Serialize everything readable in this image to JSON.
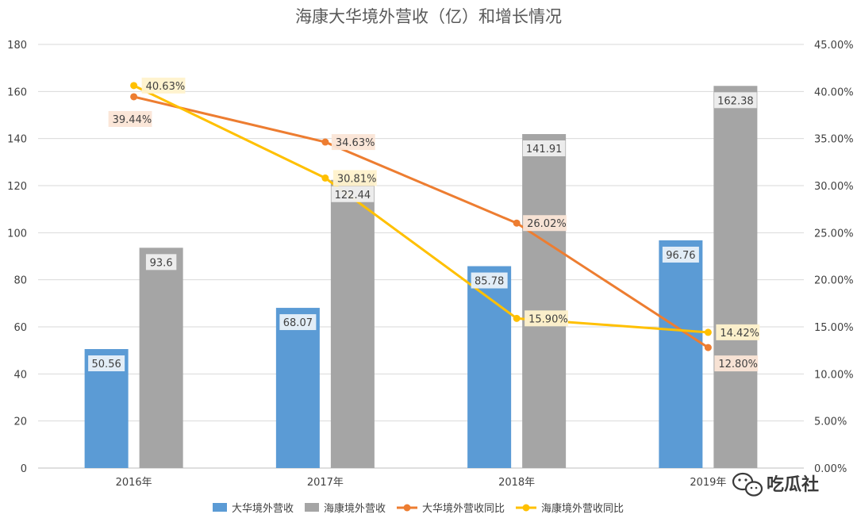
{
  "chart_data": {
    "type": "bar",
    "title": "海康大华境外营收（亿）和增长情况",
    "categories": [
      "2016年",
      "2017年",
      "2018年",
      "2019年"
    ],
    "y_left": {
      "ylim": [
        0,
        180
      ],
      "ticks": [
        "0",
        "20",
        "40",
        "60",
        "80",
        "100",
        "120",
        "140",
        "160",
        "180"
      ]
    },
    "y_right": {
      "ylim": [
        0,
        45
      ],
      "ticks": [
        "0.00%",
        "5.00%",
        "10.00%",
        "15.00%",
        "20.00%",
        "25.00%",
        "30.00%",
        "35.00%",
        "40.00%",
        "45.00%"
      ]
    },
    "series": [
      {
        "name": "大华境外营收",
        "type": "bar",
        "axis": "left",
        "color": "#5b9bd5",
        "values": [
          50.56,
          68.07,
          85.78,
          96.76
        ],
        "labels": [
          "50.56",
          "68.07",
          "85.78",
          "96.76"
        ]
      },
      {
        "name": "海康境外营收",
        "type": "bar",
        "axis": "left",
        "color": "#a5a5a5",
        "values": [
          93.6,
          122.44,
          141.91,
          162.38
        ],
        "labels": [
          "93.6",
          "122.44",
          "141.91",
          "162.38"
        ]
      },
      {
        "name": "大华境外营收同比",
        "type": "line",
        "axis": "right",
        "color": "#ed7d31",
        "values": [
          39.44,
          34.63,
          26.02,
          12.8
        ],
        "labels": [
          "39.44%",
          "34.63%",
          "26.02%",
          "12.80%"
        ]
      },
      {
        "name": "海康境外营收同比",
        "type": "line",
        "axis": "right",
        "color": "#ffc000",
        "values": [
          40.63,
          30.81,
          15.9,
          14.42
        ],
        "labels": [
          "40.63%",
          "30.81%",
          "15.90%",
          "14.42%"
        ]
      }
    ],
    "grid": true,
    "legend": "bottom"
  },
  "watermark": {
    "text": "吃瓜社",
    "icon": "wechat-icon"
  }
}
